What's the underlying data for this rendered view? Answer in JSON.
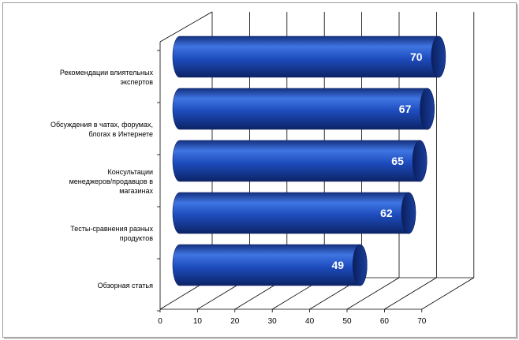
{
  "chart_data": {
    "type": "bar",
    "orientation": "horizontal",
    "style": "3d-cylinder",
    "categories": [
      [
        "Рекомендации влиятельных",
        "экспертов"
      ],
      [
        "Обсуждения в чатах, форумах,",
        "блогах в Интернете"
      ],
      [
        "Консультации",
        "менеджеров/продавцов в",
        "магазинах"
      ],
      [
        "Тесты-сравнения разных",
        "продуктов"
      ],
      [
        "Обзорная статья"
      ]
    ],
    "values": [
      70,
      67,
      65,
      62,
      49
    ],
    "data_labels": [
      "70",
      "67",
      "65",
      "62",
      "49"
    ],
    "x_ticks": [
      "0",
      "10",
      "20",
      "30",
      "40",
      "50",
      "60",
      "70"
    ],
    "xlim": [
      0,
      70
    ],
    "grid": true,
    "legend": "none",
    "colors": {
      "bar": "#1f4fbf",
      "bar_dark": "#0f2a78",
      "bar_light": "#3d73e0",
      "grid": "#000000"
    }
  }
}
